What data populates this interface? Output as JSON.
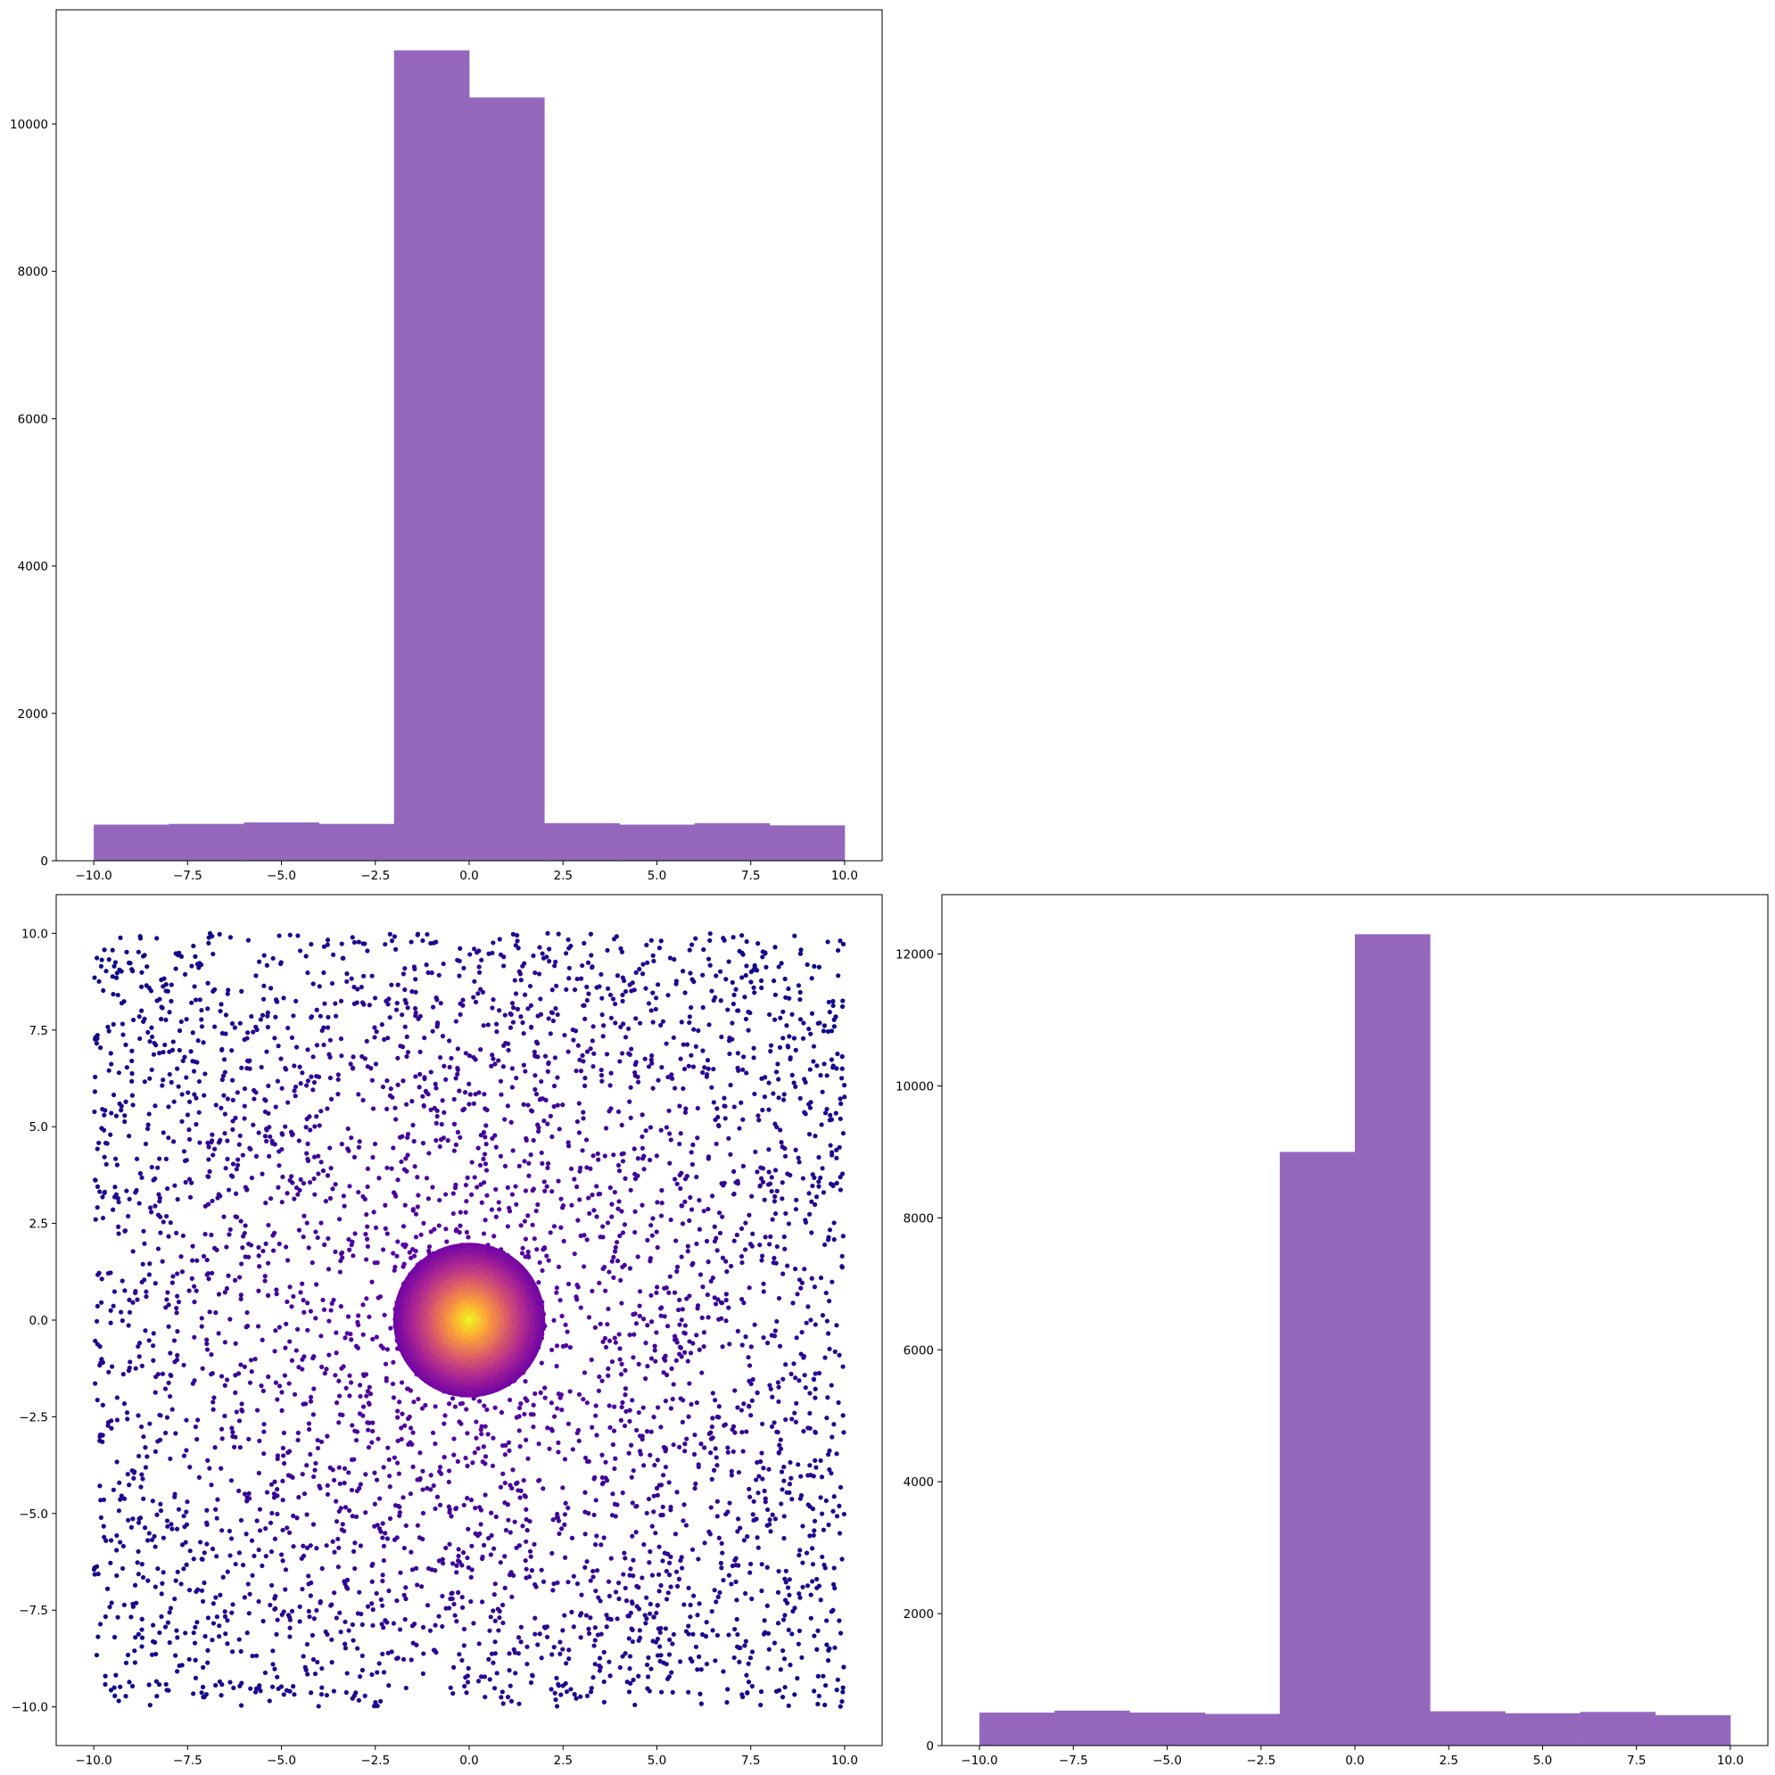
{
  "chart_data": [
    {
      "type": "bar",
      "panel": "top-left",
      "variant": "histogram",
      "title": "",
      "xlabel": "",
      "ylabel": "",
      "bin_edges": [
        -10,
        -8,
        -6,
        -4,
        -2,
        0,
        2,
        4,
        6,
        8,
        10
      ],
      "values": [
        490,
        500,
        520,
        500,
        11000,
        10360,
        510,
        490,
        510,
        480
      ],
      "xlim": [
        -11,
        11
      ],
      "ylim": [
        0,
        11550
      ],
      "xticks": [
        -10,
        -7.5,
        -5,
        -2.5,
        0,
        2.5,
        5,
        7.5,
        10
      ],
      "xtick_labels": [
        "−10.0",
        "−7.5",
        "−5.0",
        "−2.5",
        "0.0",
        "2.5",
        "5.0",
        "7.5",
        "10.0"
      ],
      "yticks": [
        0,
        2000,
        4000,
        6000,
        8000,
        10000
      ],
      "ytick_labels": [
        "0",
        "2000",
        "4000",
        "6000",
        "8000",
        "10000"
      ],
      "grid": false,
      "color": "#9467bd"
    },
    {
      "type": "scatter",
      "panel": "bottom-left",
      "title": "",
      "xlabel": "",
      "ylabel": "",
      "description_values": {
        "uniform_background_range": [
          -10,
          10
        ],
        "background_point_count": 4000,
        "dense_cluster_center": [
          0,
          0
        ],
        "dense_cluster_radius": 2.0,
        "dense_cluster_point_count": 1800
      },
      "xlim": [
        -11,
        11
      ],
      "ylim": [
        -11,
        11
      ],
      "xticks": [
        -10,
        -7.5,
        -5,
        -2.5,
        0,
        2.5,
        5,
        7.5,
        10
      ],
      "xtick_labels": [
        "−10.0",
        "−7.5",
        "−5.0",
        "−2.5",
        "0.0",
        "2.5",
        "5.0",
        "7.5",
        "10.0"
      ],
      "yticks": [
        10,
        7.5,
        5,
        2.5,
        0,
        -2.5,
        -5,
        -7.5,
        -10
      ],
      "ytick_labels": [
        "10.0",
        "7.5",
        "5.0",
        "2.5",
        "0.0",
        "−2.5",
        "−5.0",
        "−7.5",
        "−10.0"
      ],
      "grid": false,
      "colormap": "plasma",
      "colormap_stops": [
        "#0d0887",
        "#6a00a8",
        "#b12a90",
        "#e16462",
        "#fca636",
        "#f0f921"
      ]
    },
    {
      "type": "bar",
      "panel": "bottom-right",
      "variant": "histogram",
      "title": "",
      "xlabel": "",
      "ylabel": "",
      "bin_edges": [
        -10,
        -8,
        -6,
        -4,
        -2,
        0,
        2,
        4,
        6,
        8,
        10
      ],
      "values": [
        500,
        530,
        500,
        480,
        9000,
        12300,
        520,
        490,
        510,
        460
      ],
      "xlim": [
        -11,
        11
      ],
      "ylim": [
        0,
        12900
      ],
      "xticks": [
        -10,
        -7.5,
        -5,
        -2.5,
        0,
        2.5,
        5,
        7.5,
        10
      ],
      "xtick_labels": [
        "−10.0",
        "−7.5",
        "−5.0",
        "−2.5",
        "0.0",
        "2.5",
        "5.0",
        "7.5",
        "10.0"
      ],
      "yticks": [
        0,
        2000,
        4000,
        6000,
        8000,
        10000,
        12000
      ],
      "ytick_labels": [
        "0",
        "2000",
        "4000",
        "6000",
        "8000",
        "10000",
        "12000"
      ],
      "grid": false,
      "color": "#9467bd"
    }
  ]
}
